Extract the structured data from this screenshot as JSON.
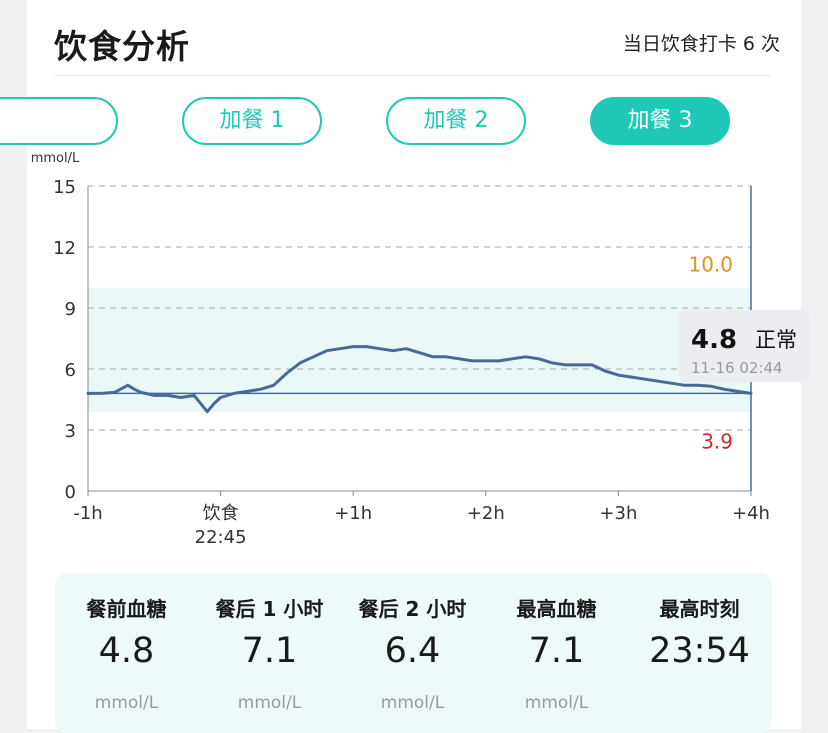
{
  "header": {
    "title": "饮食分析",
    "checkin_text": "当日饮食打卡 6 次"
  },
  "tabs": [
    {
      "label": "",
      "active": false
    },
    {
      "label": "加餐 1",
      "active": false
    },
    {
      "label": "加餐 2",
      "active": false
    },
    {
      "label": "加餐 3",
      "active": true
    }
  ],
  "colors": {
    "accent": "#1fc8b7",
    "line": "#4a6a96",
    "high_threshold": "#e0901e",
    "low_threshold": "#cc2a2a",
    "normal_band": "#eaf8f8"
  },
  "chart_data": {
    "type": "line",
    "ylabel": "mmol/L",
    "ylim": [
      0,
      15
    ],
    "yticks": [
      "15",
      "12",
      "9",
      "6",
      "3",
      "0"
    ],
    "xlim": [
      -1,
      4
    ],
    "xticks": [
      {
        "label": "-1h",
        "sub": ""
      },
      {
        "label": "饮食",
        "sub": "22:45"
      },
      {
        "label": "+1h",
        "sub": ""
      },
      {
        "label": "+2h",
        "sub": ""
      },
      {
        "label": "+3h",
        "sub": ""
      },
      {
        "label": "+4h",
        "sub": ""
      }
    ],
    "normal_range": [
      3.9,
      10.0
    ],
    "high_threshold_label": "10.0",
    "low_threshold_label": "3.9",
    "baseline": 4.8,
    "grid": "dashed",
    "series": [
      {
        "x": [
          -1.0,
          -0.9,
          -0.8,
          -0.7,
          -0.65,
          -0.6,
          -0.5,
          -0.4,
          -0.3,
          -0.2,
          -0.1,
          -0.05,
          0.0,
          0.1,
          0.2,
          0.3,
          0.4,
          0.5,
          0.6,
          0.7,
          0.8,
          0.9,
          1.0,
          1.1,
          1.2,
          1.3,
          1.4,
          1.5,
          1.6,
          1.7,
          1.8,
          1.9,
          2.0,
          2.1,
          2.2,
          2.3,
          2.4,
          2.5,
          2.6,
          2.7,
          2.8,
          2.9,
          3.0,
          3.1,
          3.2,
          3.3,
          3.4,
          3.5,
          3.6,
          3.7,
          3.8,
          3.9,
          4.0
        ],
        "y": [
          4.8,
          4.8,
          4.85,
          5.2,
          5.0,
          4.85,
          4.7,
          4.7,
          4.6,
          4.7,
          3.9,
          4.3,
          4.6,
          4.8,
          4.9,
          5.0,
          5.2,
          5.8,
          6.3,
          6.6,
          6.9,
          7.0,
          7.1,
          7.1,
          7.0,
          6.9,
          7.0,
          6.8,
          6.6,
          6.6,
          6.5,
          6.4,
          6.4,
          6.4,
          6.5,
          6.6,
          6.5,
          6.3,
          6.2,
          6.2,
          6.2,
          5.9,
          5.7,
          5.6,
          5.5,
          5.4,
          5.3,
          5.2,
          5.2,
          5.15,
          5.0,
          4.9,
          4.8
        ]
      }
    ],
    "tooltip": {
      "value": "4.8",
      "status": "正常",
      "time": "11-16 02:44"
    }
  },
  "summary": [
    {
      "label": "餐前血糖",
      "value": "4.8",
      "unit": "mmol/L"
    },
    {
      "label": "餐后 1 小时",
      "value": "7.1",
      "unit": "mmol/L"
    },
    {
      "label": "餐后 2 小时",
      "value": "6.4",
      "unit": "mmol/L"
    },
    {
      "label": "最高血糖",
      "value": "7.1",
      "unit": "mmol/L"
    },
    {
      "label": "最高时刻",
      "value": "23:54",
      "unit": ""
    }
  ]
}
